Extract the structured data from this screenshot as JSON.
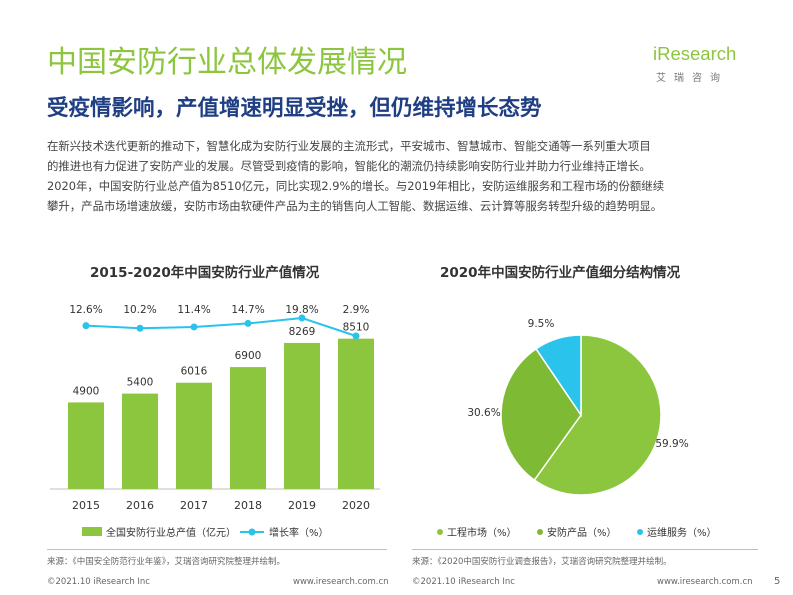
{
  "header": {
    "title": "中国安防行业总体发展情况",
    "subtitle": "受疫情影响，产值增速明显受挫，但仍维持增长态势",
    "paragraph_lines": [
      "在新兴技术迭代更新的推动下，智慧化成为安防行业发展的主流形式，平安城市、智慧城市、智能交通等一系列重大项目",
      "的推进也有力促进了安防产业的发展。尽管受到疫情的影响，智能化的潮流仍持续影响安防行业并助力行业维持正增长。",
      "2020年，中国安防行业总产值为8510亿元，同比实现2.9%的增长。与2019年相比，安防运维服务和工程市场的份额继续",
      "攀升，产品市场增速放缓，安防市场由软硬件产品为主的销售向人工智能、数据运维、云计算等服务转型升级的趋势明显。"
    ]
  },
  "logo": {
    "name": "iResearch",
    "sub": "艾瑞咨询"
  },
  "colors": {
    "green": "#8cc63e",
    "blue": "#29c3ec",
    "navy": "#1f3e83"
  },
  "chart_data": [
    {
      "type": "bar",
      "title": "2015-2020年中国安防行业产值情况",
      "categories": [
        "2015",
        "2016",
        "2017",
        "2018",
        "2019",
        "2020"
      ],
      "series": [
        {
          "name": "全国安防行业总产值（亿元）",
          "values": [
            4900,
            5400,
            6016,
            6900,
            8269,
            8510
          ],
          "labels": [
            "4900",
            "5400",
            "6016",
            "6900",
            "8269",
            "8510"
          ]
        },
        {
          "name": "增长率（%）",
          "type": "line",
          "values": [
            12.6,
            10.2,
            11.4,
            14.7,
            19.8,
            2.9
          ],
          "labels": [
            "12.6%",
            "10.2%",
            "11.4%",
            "14.7%",
            "19.8%",
            "2.9%"
          ]
        }
      ],
      "ylim": [
        0,
        9000
      ],
      "legend": "bottom",
      "source": "来源：《中国安全防范行业年鉴》，艾瑞咨询研究院整理并绘制。"
    },
    {
      "type": "pie",
      "title": "2020年中国安防行业产值细分结构情况",
      "slices": [
        {
          "name": "工程市场（%）",
          "value": 59.9,
          "label": "59.9%"
        },
        {
          "name": "安防产品（%）",
          "value": 30.6,
          "label": "30.6%"
        },
        {
          "name": "运维服务（%）",
          "value": 9.5,
          "label": "9.5%"
        }
      ],
      "legend": "bottom",
      "source": "来源：《2020中国安防行业调查报告》，艾瑞咨询研究院整理并绘制。"
    }
  ],
  "footer": {
    "left_copyright": "©2021.10 iResearch Inc",
    "left_url": "www.iresearch.com.cn",
    "right_copyright": "©2021.10 iResearch Inc",
    "right_url": "www.iresearch.com.cn",
    "page_number": "5"
  }
}
